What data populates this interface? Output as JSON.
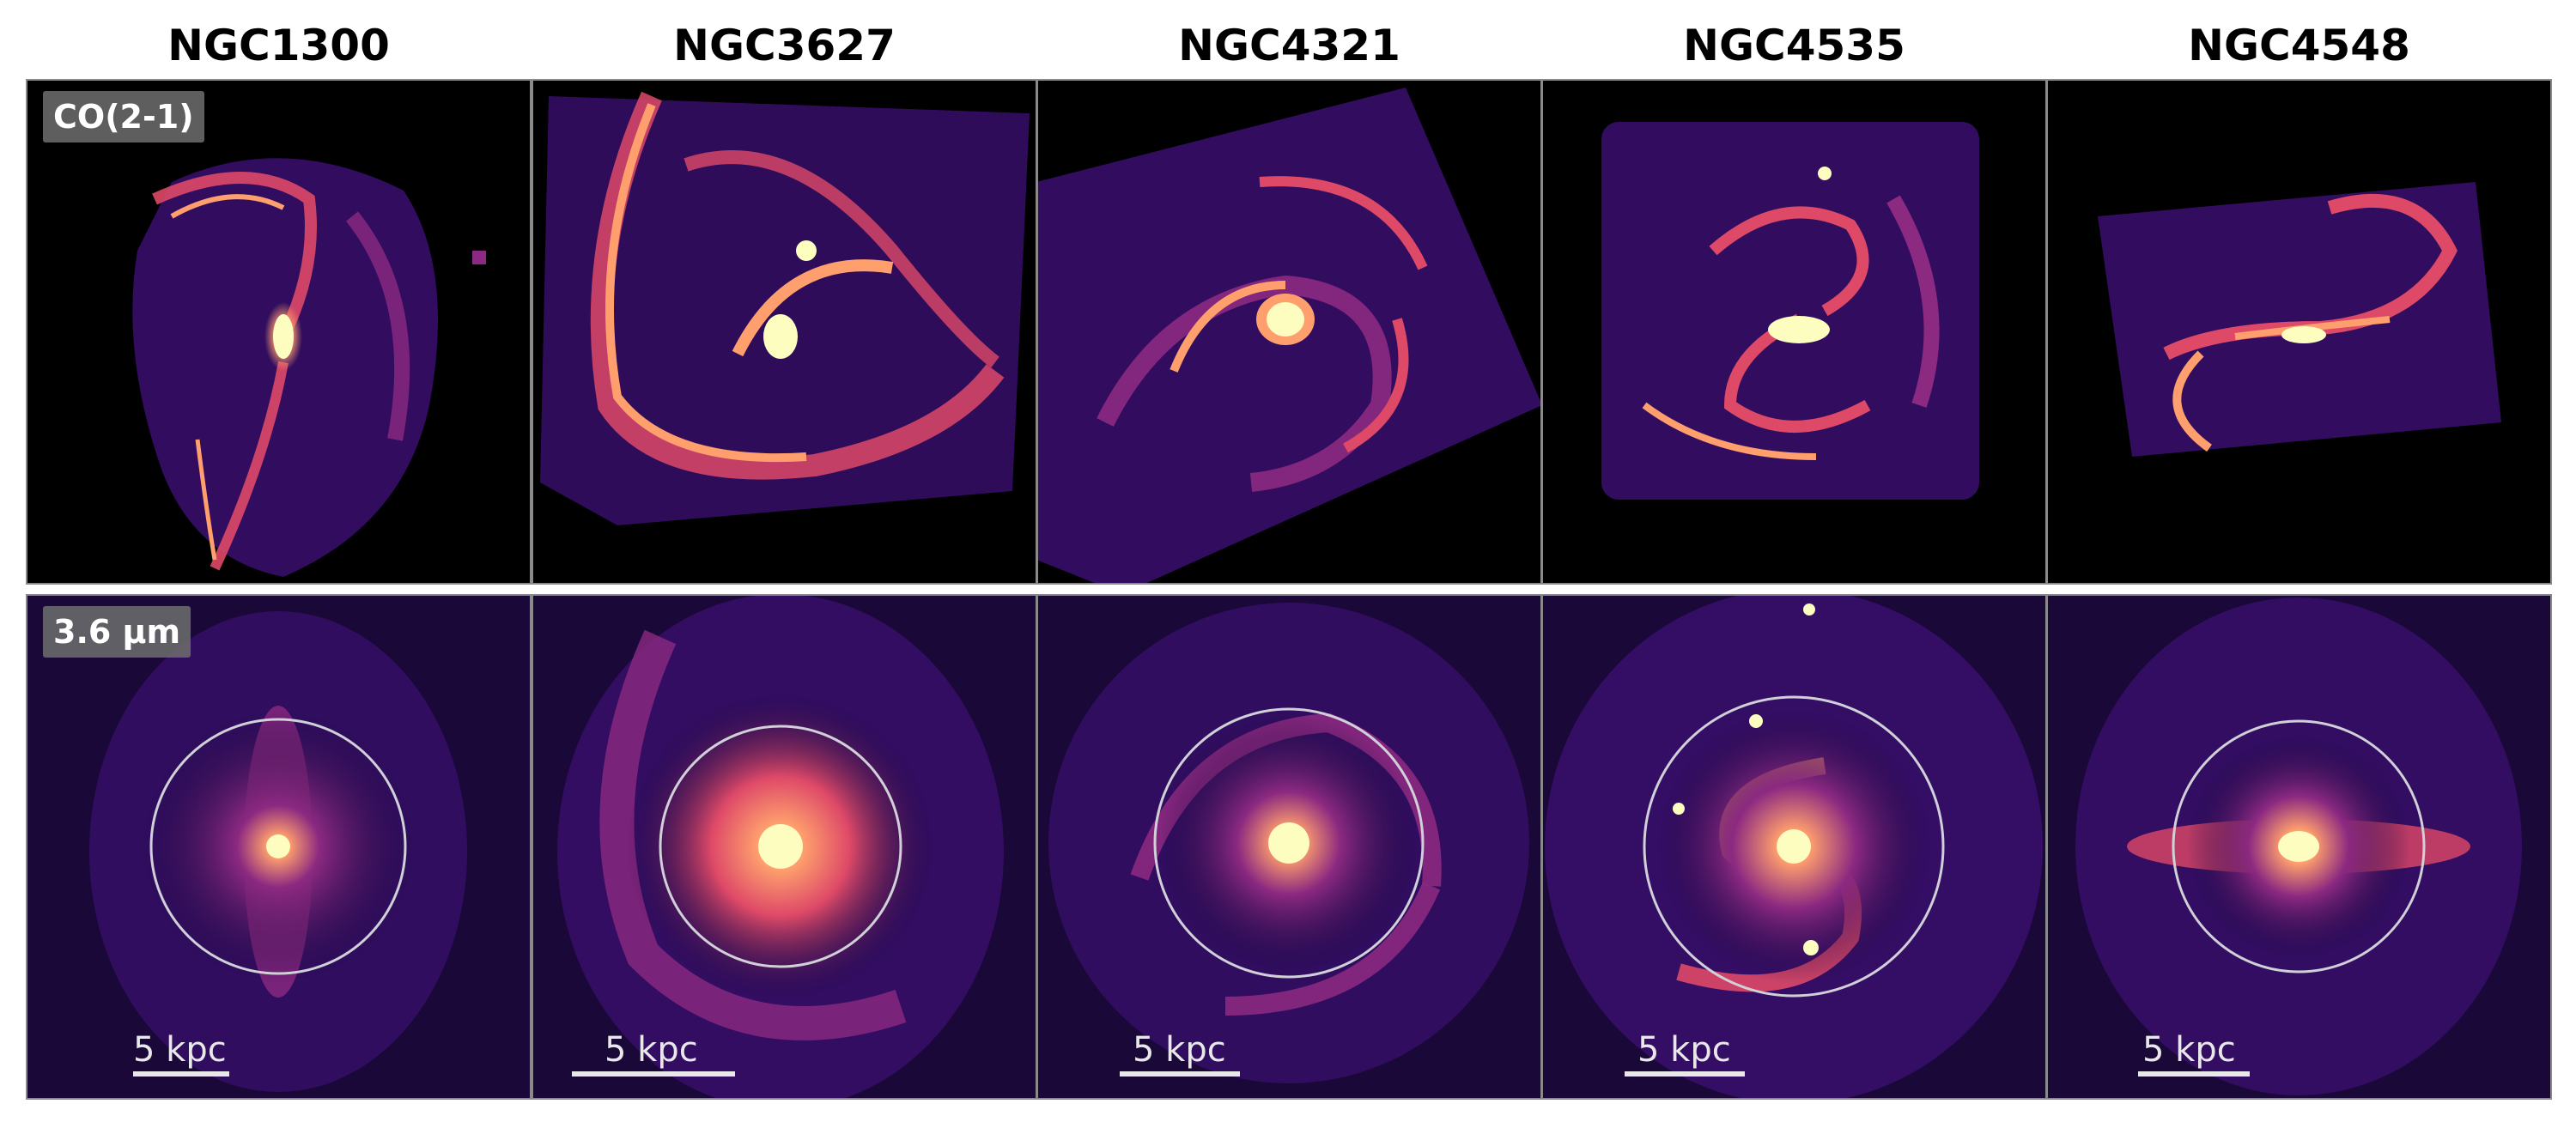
{
  "galaxies": [
    {
      "name": "NGC1300",
      "scale_label": "5 kpc"
    },
    {
      "name": "NGC3627",
      "scale_label": "5 kpc"
    },
    {
      "name": "NGC4321",
      "scale_label": "5 kpc"
    },
    {
      "name": "NGC4535",
      "scale_label": "5 kpc"
    },
    {
      "name": "NGC4548",
      "scale_label": "5 kpc"
    }
  ],
  "row_labels": {
    "top": "CO(2-1)",
    "bottom": "3.6 µm"
  },
  "colors": {
    "colormap": [
      "#000004",
      "#3b0f70",
      "#8c2981",
      "#de4968",
      "#fe9f6d",
      "#fcfdbf"
    ],
    "circle": "#d0d0d8",
    "scalebar": "#e8e8e8"
  }
}
